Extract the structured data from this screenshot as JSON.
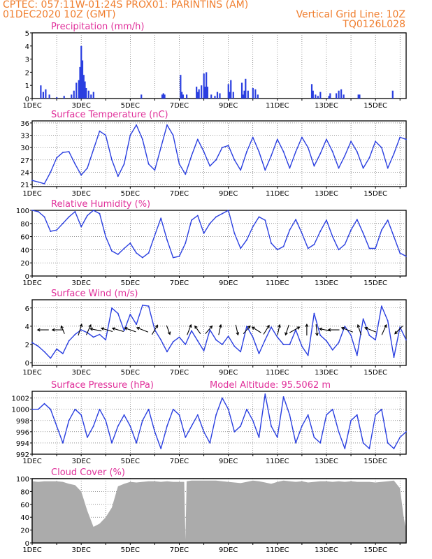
{
  "header": {
    "station": "CPTEC:   057:11W-01:24S   PROX01: PARINTINS (AM)",
    "run": "01DEC2020 10Z (GMT)",
    "grid_note": "Vertical Grid Line: 10Z",
    "code": "TQ0126L028"
  },
  "colors": {
    "header": "#f07e2e",
    "title": "#e0309a",
    "line": "#2a3fe0",
    "precip": "#2a3fe0",
    "cloud": "#ababab",
    "arrow": "#000000"
  },
  "x_ticks": [
    "1DEC",
    "3DEC",
    "5DEC",
    "7DEC",
    "9DEC",
    "11DEC",
    "13DEC",
    "15DEC"
  ],
  "x_range_days": [
    0,
    15.25
  ],
  "chart_data": [
    {
      "type": "bar",
      "title": "Precipitation (mm/h)",
      "ylim": [
        0,
        5
      ],
      "yticks": [
        "0",
        "1",
        "2",
        "3",
        "4",
        "5"
      ],
      "x": [
        0.35,
        0.45,
        0.55,
        0.7,
        1.0,
        1.3,
        1.6,
        1.7,
        1.8,
        1.9,
        1.95,
        2.0,
        2.05,
        2.1,
        2.15,
        2.2,
        2.3,
        2.4,
        2.5,
        4.45,
        5.3,
        5.35,
        5.4,
        6.05,
        6.1,
        6.15,
        6.3,
        6.7,
        6.75,
        6.8,
        6.9,
        7.0,
        7.05,
        7.1,
        7.15,
        7.3,
        7.45,
        7.55,
        7.65,
        8.0,
        8.05,
        8.1,
        8.2,
        8.55,
        8.6,
        8.65,
        8.7,
        8.8,
        9.0,
        9.1,
        9.2,
        11.4,
        11.45,
        11.55,
        11.65,
        11.75,
        12.1,
        12.15,
        12.4,
        12.5,
        12.6,
        12.7,
        13.3,
        13.35,
        14.7
      ],
      "values": [
        1.0,
        0.5,
        0.7,
        0.3,
        0.1,
        0.2,
        0.3,
        0.6,
        1.2,
        1.4,
        2.4,
        4.0,
        2.9,
        1.8,
        1.3,
        0.8,
        0.6,
        0.3,
        0.5,
        0.3,
        0.3,
        0.4,
        0.3,
        1.8,
        0.5,
        0.3,
        0.3,
        0.9,
        0.5,
        0.7,
        1.0,
        1.9,
        0.9,
        2.0,
        0.9,
        0.3,
        0.2,
        0.5,
        0.4,
        1.1,
        0.5,
        1.4,
        0.5,
        1.2,
        0.3,
        0.6,
        1.5,
        0.6,
        0.8,
        0.7,
        0.3,
        1.1,
        0.6,
        0.3,
        0.2,
        0.5,
        0.2,
        0.4,
        0.4,
        0.6,
        0.7,
        0.3,
        0.3,
        0.3,
        0.6
      ]
    },
    {
      "type": "line",
      "title": "Surface Temperature (nC)",
      "ylim": [
        20.5,
        36.5
      ],
      "yticks": [
        "21",
        "24",
        "27",
        "30",
        "33",
        "36"
      ],
      "ytick_values": [
        21,
        24,
        27,
        30,
        33,
        36
      ],
      "x": [
        0,
        0.25,
        0.5,
        0.75,
        1.0,
        1.25,
        1.5,
        1.75,
        2.0,
        2.25,
        2.5,
        2.75,
        3.0,
        3.25,
        3.5,
        3.75,
        4.0,
        4.25,
        4.5,
        4.75,
        5.0,
        5.25,
        5.5,
        5.75,
        6.0,
        6.25,
        6.5,
        6.75,
        7.0,
        7.25,
        7.5,
        7.75,
        8.0,
        8.25,
        8.5,
        8.75,
        9.0,
        9.25,
        9.5,
        9.75,
        10.0,
        10.25,
        10.5,
        10.75,
        11.0,
        11.25,
        11.5,
        11.75,
        12.0,
        12.25,
        12.5,
        12.75,
        13.0,
        13.25,
        13.5,
        13.75,
        14.0,
        14.25,
        14.5,
        14.75,
        15.0,
        15.25
      ],
      "values": [
        22.0,
        21.6,
        21.2,
        24.0,
        27.5,
        28.8,
        29.0,
        26.0,
        23.3,
        25.0,
        29.5,
        34.0,
        33.0,
        27.0,
        23.0,
        26.0,
        33.0,
        35.5,
        32.0,
        26.0,
        24.5,
        30.0,
        35.5,
        33.0,
        26.0,
        23.5,
        28.0,
        32.0,
        29.0,
        25.5,
        27.0,
        30.0,
        30.5,
        27.0,
        24.5,
        29.0,
        32.5,
        29.0,
        24.5,
        28.0,
        32.0,
        29.0,
        25.0,
        29.0,
        32.5,
        30.0,
        25.5,
        28.5,
        32.0,
        29.0,
        25.0,
        28.0,
        31.5,
        29.0,
        25.0,
        27.5,
        31.5,
        30.0,
        25.0,
        28.5,
        32.5,
        32.0
      ]
    },
    {
      "type": "line",
      "title": "Relative Humidity (%)",
      "ylim": [
        0,
        100
      ],
      "yticks": [
        "0",
        "20",
        "40",
        "60",
        "80",
        "100"
      ],
      "ytick_values": [
        0,
        20,
        40,
        60,
        80,
        100
      ],
      "x": [
        0,
        0.25,
        0.5,
        0.75,
        1.0,
        1.25,
        1.5,
        1.75,
        2.0,
        2.25,
        2.5,
        2.75,
        3.0,
        3.25,
        3.5,
        3.75,
        4.0,
        4.25,
        4.5,
        4.75,
        5.0,
        5.25,
        5.5,
        5.75,
        6.0,
        6.25,
        6.5,
        6.75,
        7.0,
        7.25,
        7.5,
        7.75,
        8.0,
        8.25,
        8.5,
        8.75,
        9.0,
        9.25,
        9.5,
        9.75,
        10.0,
        10.25,
        10.5,
        10.75,
        11.0,
        11.25,
        11.5,
        11.75,
        12.0,
        12.25,
        12.5,
        12.75,
        13.0,
        13.25,
        13.5,
        13.75,
        14.0,
        14.25,
        14.5,
        14.75,
        15.0,
        15.25
      ],
      "values": [
        100,
        98,
        90,
        68,
        70,
        80,
        90,
        98,
        75,
        92,
        100,
        95,
        60,
        38,
        33,
        42,
        50,
        35,
        28,
        35,
        62,
        88,
        55,
        28,
        30,
        50,
        85,
        92,
        65,
        80,
        90,
        95,
        100,
        65,
        42,
        55,
        75,
        90,
        85,
        50,
        40,
        45,
        70,
        86,
        65,
        42,
        48,
        68,
        85,
        60,
        40,
        48,
        70,
        86,
        65,
        42,
        42,
        70,
        85,
        60,
        35,
        30
      ]
    },
    {
      "type": "line",
      "title": "Surface Wind (m/s)",
      "ylim": [
        -0.3,
        6.9
      ],
      "yticks": [
        "0",
        "2",
        "4",
        "6"
      ],
      "ytick_values": [
        0,
        2,
        4,
        6
      ],
      "x": [
        0,
        0.25,
        0.5,
        0.75,
        1.0,
        1.25,
        1.5,
        1.75,
        2.0,
        2.25,
        2.5,
        2.75,
        3.0,
        3.25,
        3.5,
        3.75,
        4.0,
        4.25,
        4.5,
        4.75,
        5.0,
        5.25,
        5.5,
        5.75,
        6.0,
        6.25,
        6.5,
        6.75,
        7.0,
        7.25,
        7.5,
        7.75,
        8.0,
        8.25,
        8.5,
        8.75,
        9.0,
        9.25,
        9.5,
        9.75,
        10.0,
        10.25,
        10.5,
        10.75,
        11.0,
        11.25,
        11.5,
        11.75,
        12.0,
        12.25,
        12.5,
        12.75,
        13.0,
        13.25,
        13.5,
        13.75,
        14.0,
        14.25,
        14.5,
        14.75,
        15.0,
        15.25
      ],
      "values": [
        2.2,
        1.8,
        1.2,
        0.5,
        1.5,
        1.0,
        2.4,
        3.1,
        3.6,
        3.3,
        2.8,
        3.1,
        2.5,
        6.0,
        5.4,
        3.5,
        5.3,
        4.2,
        6.3,
        6.2,
        3.6,
        2.5,
        1.2,
        2.3,
        2.8,
        2.0,
        3.5,
        2.4,
        1.3,
        3.6,
        2.5,
        2.0,
        2.9,
        1.8,
        1.2,
        4.0,
        2.8,
        1.0,
        2.5,
        3.9,
        2.8,
        2.0,
        2.0,
        3.6,
        1.8,
        0.8,
        5.4,
        3.0,
        2.4,
        1.4,
        2.2,
        4.0,
        3.0,
        0.8,
        4.8,
        3.0,
        2.5,
        6.2,
        4.6,
        0.6,
        3.9,
        2.5
      ],
      "arrows": [
        {
          "x": 0.45,
          "u": -1,
          "v": 0
        },
        {
          "x": 1.05,
          "u": -1,
          "v": 0
        },
        {
          "x": 1.25,
          "u": -0.3,
          "v": 0.7
        },
        {
          "x": 1.95,
          "u": 0.3,
          "v": 1.0
        },
        {
          "x": 2.3,
          "u": 0.4,
          "v": 0.9
        },
        {
          "x": 2.6,
          "u": -1,
          "v": 0.2
        },
        {
          "x": 3.05,
          "u": -1,
          "v": 0.3
        },
        {
          "x": 3.5,
          "u": -1,
          "v": 0.3
        },
        {
          "x": 4.0,
          "u": -1,
          "v": 0.35
        },
        {
          "x": 4.5,
          "u": -1,
          "v": 0.4
        },
        {
          "x": 5.0,
          "u": 0.5,
          "v": 0.85
        },
        {
          "x": 5.55,
          "u": 0.3,
          "v": -0.8
        },
        {
          "x": 6.4,
          "u": 0.35,
          "v": 0.9
        },
        {
          "x": 6.75,
          "u": -0.5,
          "v": 0.7
        },
        {
          "x": 7.2,
          "u": 0.6,
          "v": 0.7
        },
        {
          "x": 7.65,
          "u": 0.2,
          "v": 0.9
        },
        {
          "x": 8.35,
          "u": 0.2,
          "v": -0.9
        },
        {
          "x": 8.75,
          "u": 0.6,
          "v": 0.7
        },
        {
          "x": 9.15,
          "u": -0.8,
          "v": 0.5
        },
        {
          "x": 9.55,
          "u": 0.5,
          "v": 0.8
        },
        {
          "x": 10.05,
          "u": 0.2,
          "v": 0.9
        },
        {
          "x": 10.4,
          "u": -0.3,
          "v": -0.9
        },
        {
          "x": 10.7,
          "u": 0.9,
          "v": 0.5
        },
        {
          "x": 11.2,
          "u": 0.0,
          "v": 1.0
        },
        {
          "x": 11.6,
          "u": 0.1,
          "v": -1.0
        },
        {
          "x": 11.95,
          "u": -1,
          "v": 0.2
        },
        {
          "x": 12.3,
          "u": -1,
          "v": 0.0
        },
        {
          "x": 12.85,
          "u": -1,
          "v": 0.4
        },
        {
          "x": 13.35,
          "u": -0.3,
          "v": 0.9
        },
        {
          "x": 13.8,
          "u": -1,
          "v": 0.4
        },
        {
          "x": 14.35,
          "u": 0.4,
          "v": 0.9
        },
        {
          "x": 14.95,
          "u": -0.7,
          "v": -0.7
        }
      ]
    },
    {
      "type": "line",
      "title": "Surface Pressure (hPa)",
      "note_label": "Model Altitude: 95.5062  m",
      "ylim": [
        992,
        1003.2
      ],
      "yticks": [
        "992",
        "994",
        "996",
        "998",
        "1000",
        "1002"
      ],
      "ytick_values": [
        992,
        994,
        996,
        998,
        1000,
        1002
      ],
      "x": [
        0,
        0.25,
        0.5,
        0.75,
        1.0,
        1.25,
        1.5,
        1.75,
        2.0,
        2.25,
        2.5,
        2.75,
        3.0,
        3.25,
        3.5,
        3.75,
        4.0,
        4.25,
        4.5,
        4.75,
        5.0,
        5.25,
        5.5,
        5.75,
        6.0,
        6.25,
        6.5,
        6.75,
        7.0,
        7.25,
        7.5,
        7.75,
        8.0,
        8.25,
        8.5,
        8.75,
        9.0,
        9.25,
        9.5,
        9.75,
        10.0,
        10.25,
        10.5,
        10.75,
        11.0,
        11.25,
        11.5,
        11.75,
        12.0,
        12.25,
        12.5,
        12.75,
        13.0,
        13.25,
        13.5,
        13.75,
        14.0,
        14.25,
        14.5,
        14.75,
        15.0,
        15.25
      ],
      "values": [
        1000,
        1000,
        1001,
        1000,
        997,
        994,
        998,
        1000,
        999,
        995,
        997,
        1000,
        998,
        994,
        997,
        999,
        997,
        994,
        998,
        1000,
        996,
        993,
        997,
        1000,
        999,
        995,
        997,
        999,
        996,
        994,
        999,
        1002,
        1000,
        996,
        997,
        1000,
        998,
        995,
        1002.7,
        997,
        995,
        1002.2,
        999,
        994,
        997,
        999,
        995,
        994,
        999,
        1000,
        996,
        993,
        998,
        999,
        994,
        993,
        999,
        1000,
        994,
        993,
        995,
        996
      ]
    },
    {
      "type": "area",
      "title": "Cloud Cover (%)",
      "ylim": [
        0,
        100
      ],
      "yticks": [
        "0",
        "20",
        "40",
        "60",
        "80",
        "100"
      ],
      "ytick_values": [
        0,
        20,
        40,
        60,
        80,
        100
      ],
      "x": [
        0,
        0.25,
        0.5,
        0.75,
        1.0,
        1.25,
        1.5,
        1.75,
        2.0,
        2.25,
        2.5,
        2.75,
        3.0,
        3.25,
        3.5,
        3.75,
        4.0,
        4.25,
        4.5,
        4.75,
        5.0,
        5.25,
        5.5,
        5.75,
        6.0,
        6.2,
        6.25,
        6.3,
        6.5,
        6.75,
        7.0,
        7.25,
        7.5,
        7.75,
        8.0,
        8.25,
        8.5,
        8.75,
        9.0,
        9.25,
        9.5,
        9.75,
        10.0,
        10.25,
        10.5,
        10.75,
        11.0,
        11.25,
        11.5,
        11.75,
        12.0,
        12.25,
        12.5,
        12.75,
        13.0,
        13.25,
        13.5,
        13.75,
        14.0,
        14.25,
        14.5,
        14.75,
        15.0,
        15.15,
        15.25
      ],
      "values": [
        96,
        95,
        96,
        96,
        96,
        95,
        92,
        90,
        80,
        50,
        25,
        30,
        40,
        55,
        88,
        92,
        95,
        94,
        95,
        96,
        96,
        95,
        96,
        95,
        95,
        95,
        5,
        96,
        97,
        97,
        97,
        97,
        97,
        96,
        95,
        94,
        93,
        95,
        97,
        96,
        94,
        92,
        95,
        97,
        96,
        95,
        96,
        94,
        95,
        96,
        96,
        95,
        96,
        95,
        96,
        95,
        95,
        95,
        94,
        95,
        96,
        97,
        85,
        40,
        20
      ]
    }
  ]
}
